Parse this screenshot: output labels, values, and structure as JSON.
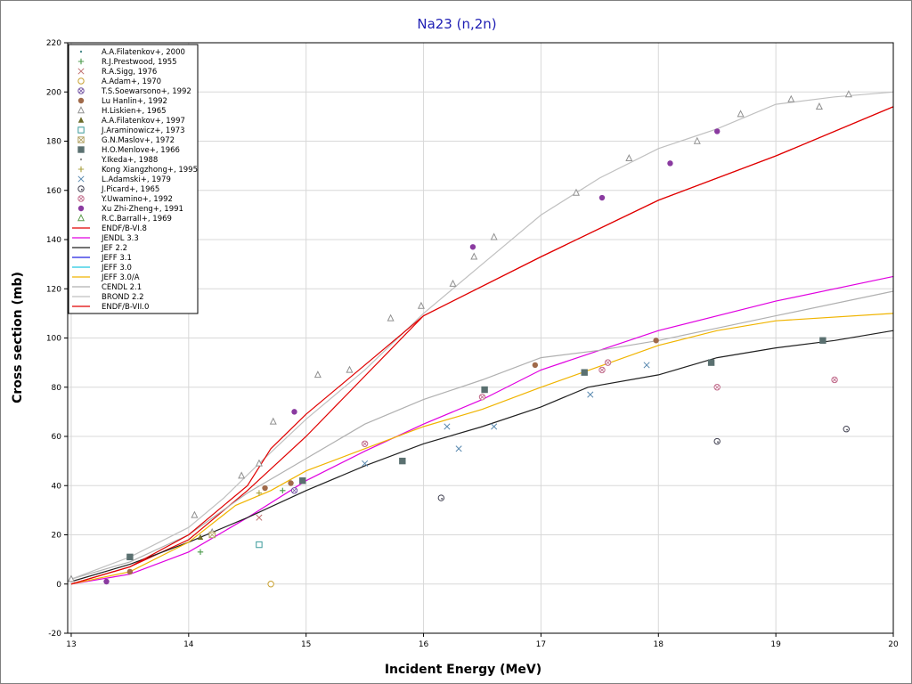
{
  "chart_data": {
    "type": "scatter",
    "title": "Na23 (n,2n)",
    "xlabel": "Incident Energy (MeV)",
    "ylabel": "Cross section (mb)",
    "xlim": [
      12.97,
      20
    ],
    "ylim": [
      -20,
      220
    ],
    "x_ticks": [
      13,
      14,
      15,
      16,
      17,
      18,
      19,
      20
    ],
    "y_ticks": [
      -20,
      0,
      20,
      40,
      60,
      80,
      100,
      120,
      140,
      160,
      180,
      200,
      220
    ],
    "grid": true,
    "legend_position": "top-left",
    "colors": {
      "title": "#1e1eb4",
      "grid": "#d8d8d8",
      "axis": "#000000"
    },
    "series": [
      {
        "name": "A.A.Filatenkov+, 2000",
        "kind": "points",
        "marker": "dot",
        "color": "#4a8a8a",
        "points": []
      },
      {
        "name": "R.J.Prestwood, 1955",
        "kind": "points",
        "marker": "plus",
        "color": "#4a9a4a",
        "points": [
          [
            14.1,
            13
          ],
          [
            14.8,
            38
          ]
        ]
      },
      {
        "name": "R.A.Sigg, 1976",
        "kind": "points",
        "marker": "x",
        "color": "#c07070",
        "points": [
          [
            14.6,
            27
          ]
        ]
      },
      {
        "name": "A.Adam+, 1970",
        "kind": "points",
        "marker": "circle",
        "color": "#c8a030",
        "points": [
          [
            14.7,
            0
          ]
        ]
      },
      {
        "name": "T.S.Soewarsono+, 1992",
        "kind": "points",
        "marker": "circlex",
        "color": "#7050a0",
        "points": [
          [
            14.9,
            38
          ]
        ]
      },
      {
        "name": "Lu Hanlin+, 1992",
        "kind": "points",
        "marker": "filledcircle",
        "color": "#a06a4a",
        "points": [
          [
            13.5,
            5
          ],
          [
            14.65,
            39
          ],
          [
            14.87,
            41
          ],
          [
            16.95,
            89
          ],
          [
            17.98,
            99
          ]
        ]
      },
      {
        "name": "H.Liskien+, 1965",
        "kind": "points",
        "marker": "triangle",
        "color": "#909090",
        "points": [
          [
            13.0,
            2
          ],
          [
            14.05,
            28
          ],
          [
            14.2,
            21
          ],
          [
            14.45,
            44
          ],
          [
            14.6,
            49
          ],
          [
            14.72,
            66
          ],
          [
            15.1,
            85
          ],
          [
            15.37,
            87
          ],
          [
            15.72,
            108
          ],
          [
            15.98,
            113
          ],
          [
            16.25,
            122
          ],
          [
            16.43,
            133
          ],
          [
            16.6,
            141
          ],
          [
            17.3,
            159
          ],
          [
            17.75,
            173
          ],
          [
            18.33,
            180
          ],
          [
            18.7,
            191
          ],
          [
            19.13,
            197
          ],
          [
            19.37,
            194
          ],
          [
            19.62,
            199
          ]
        ]
      },
      {
        "name": "A.A.Filatenkov+, 1997",
        "kind": "points",
        "marker": "filledtriangle",
        "color": "#6b6b2a",
        "points": [
          [
            14.1,
            19
          ]
        ]
      },
      {
        "name": "J.Araminowicz+, 1973",
        "kind": "points",
        "marker": "square",
        "color": "#3a9a9a",
        "points": [
          [
            14.6,
            16
          ]
        ]
      },
      {
        "name": "G.N.Maslov+, 1972",
        "kind": "points",
        "marker": "squarex",
        "color": "#b0a060",
        "points": [
          [
            14.2,
            20
          ]
        ]
      },
      {
        "name": "H.O.Menlove+, 1966",
        "kind": "points",
        "marker": "filledsquare",
        "color": "#5a7070",
        "points": [
          [
            13.5,
            11
          ],
          [
            14.97,
            42
          ],
          [
            15.82,
            50
          ],
          [
            16.52,
            79
          ],
          [
            17.37,
            86
          ],
          [
            18.45,
            90
          ],
          [
            19.4,
            99
          ]
        ]
      },
      {
        "name": "Y.Ikeda+, 1988",
        "kind": "points",
        "marker": "dot",
        "color": "#909090",
        "points": []
      },
      {
        "name": "Kong Xiangzhong+, 1995",
        "kind": "points",
        "marker": "plus",
        "color": "#a8a040",
        "points": [
          [
            14.6,
            37
          ]
        ]
      },
      {
        "name": "L.Adamski+, 1979",
        "kind": "points",
        "marker": "x",
        "color": "#5a8ab0",
        "points": [
          [
            15.5,
            49
          ],
          [
            16.2,
            64
          ],
          [
            16.3,
            55
          ],
          [
            16.6,
            64
          ],
          [
            17.42,
            77
          ],
          [
            17.9,
            89
          ]
        ]
      },
      {
        "name": "J.Picard+, 1965",
        "kind": "points",
        "marker": "circledot",
        "color": "#404050",
        "points": [
          [
            16.15,
            35
          ],
          [
            18.5,
            58
          ],
          [
            19.6,
            63
          ]
        ]
      },
      {
        "name": "Y.Uwamino+, 1992",
        "kind": "points",
        "marker": "circlex",
        "color": "#c06a8a",
        "points": [
          [
            15.5,
            57
          ],
          [
            16.5,
            76
          ],
          [
            17.52,
            87
          ],
          [
            17.57,
            90
          ],
          [
            18.5,
            80
          ],
          [
            19.5,
            83
          ]
        ]
      },
      {
        "name": "Xu Zhi-Zheng+, 1991",
        "kind": "points",
        "marker": "filledcircle",
        "color": "#8a3aa0",
        "points": [
          [
            13.3,
            1
          ],
          [
            14.9,
            70
          ],
          [
            16.42,
            137
          ],
          [
            17.52,
            157
          ],
          [
            18.1,
            171
          ],
          [
            18.5,
            184
          ]
        ]
      },
      {
        "name": "R.C.Barrall+, 1969",
        "kind": "points",
        "marker": "triangle",
        "color": "#5a9a4a",
        "points": []
      },
      {
        "name": "ENDF/B-VI.8",
        "kind": "line",
        "color": "#e00000",
        "points": [
          [
            13.0,
            0
          ],
          [
            13.5,
            7
          ],
          [
            14.0,
            18
          ],
          [
            14.5,
            38
          ],
          [
            15.0,
            60
          ],
          [
            16.0,
            109
          ],
          [
            17.0,
            133
          ],
          [
            18.0,
            156
          ],
          [
            19.0,
            174
          ],
          [
            20.0,
            194
          ]
        ]
      },
      {
        "name": "JENDL 3.3",
        "kind": "line",
        "color": "#e000e0",
        "points": [
          [
            13.0,
            0
          ],
          [
            13.5,
            4
          ],
          [
            14.0,
            13
          ],
          [
            14.5,
            27
          ],
          [
            15.0,
            42
          ],
          [
            15.5,
            54
          ],
          [
            16.0,
            65
          ],
          [
            16.5,
            75
          ],
          [
            17.0,
            87
          ],
          [
            18.0,
            103
          ],
          [
            19.0,
            115
          ],
          [
            20.0,
            125
          ]
        ]
      },
      {
        "name": "JEF 2.2",
        "kind": "line",
        "color": "#202020",
        "points": [
          [
            13.0,
            1
          ],
          [
            13.5,
            8
          ],
          [
            14.0,
            17
          ],
          [
            14.5,
            27
          ],
          [
            15.0,
            38
          ],
          [
            15.5,
            48
          ],
          [
            16.0,
            57
          ],
          [
            16.5,
            64
          ],
          [
            17.0,
            72
          ],
          [
            17.4,
            80
          ],
          [
            18.0,
            85
          ],
          [
            18.5,
            92
          ],
          [
            19.0,
            96
          ],
          [
            19.5,
            99
          ],
          [
            20.0,
            103
          ]
        ]
      },
      {
        "name": "JEFF 3.1",
        "kind": "line",
        "color": "#2020e0",
        "points": []
      },
      {
        "name": "JEFF 3.0",
        "kind": "line",
        "color": "#20c8e0",
        "points": []
      },
      {
        "name": "JEFF 3.0/A",
        "kind": "line",
        "color": "#f0b400",
        "points": [
          [
            13.0,
            0
          ],
          [
            13.5,
            5
          ],
          [
            14.0,
            17
          ],
          [
            14.4,
            32
          ],
          [
            14.7,
            38
          ],
          [
            15.0,
            46
          ],
          [
            15.5,
            55
          ],
          [
            16.0,
            64
          ],
          [
            16.5,
            71
          ],
          [
            17.0,
            80
          ],
          [
            18.0,
            97
          ],
          [
            18.5,
            103
          ],
          [
            19.0,
            107
          ],
          [
            20.0,
            110
          ]
        ]
      },
      {
        "name": "CENDL 2.1",
        "kind": "line",
        "color": "#b0b0b0",
        "points": [
          [
            13.0,
            2
          ],
          [
            13.5,
            9
          ],
          [
            14.0,
            20
          ],
          [
            14.5,
            37
          ],
          [
            15.0,
            51
          ],
          [
            15.5,
            65
          ],
          [
            16.0,
            75
          ],
          [
            16.5,
            83
          ],
          [
            17.0,
            92
          ],
          [
            17.5,
            95
          ],
          [
            18.0,
            99
          ],
          [
            18.5,
            104
          ],
          [
            19.0,
            109
          ],
          [
            20.0,
            119
          ]
        ]
      },
      {
        "name": "BROND 2.2",
        "kind": "line",
        "color": "#c0c0c0",
        "points": [
          [
            13.0,
            2
          ],
          [
            13.5,
            11
          ],
          [
            14.0,
            23
          ],
          [
            14.3,
            35
          ],
          [
            14.6,
            49
          ],
          [
            15.0,
            67
          ],
          [
            15.5,
            87
          ],
          [
            16.0,
            110
          ],
          [
            16.5,
            130
          ],
          [
            17.0,
            150
          ],
          [
            17.5,
            165
          ],
          [
            18.0,
            177
          ],
          [
            18.5,
            185
          ],
          [
            19.0,
            195
          ],
          [
            19.5,
            198
          ],
          [
            20.0,
            200
          ]
        ]
      },
      {
        "name": "ENDF/B-VII.0",
        "kind": "line",
        "color": "#e00000",
        "points": [
          [
            13.0,
            0
          ],
          [
            13.5,
            7
          ],
          [
            14.0,
            20
          ],
          [
            14.5,
            40
          ],
          [
            14.7,
            55
          ],
          [
            15.0,
            69
          ],
          [
            15.5,
            89
          ],
          [
            16.0,
            109
          ],
          [
            17.0,
            133
          ],
          [
            18.0,
            156
          ],
          [
            19.0,
            174
          ],
          [
            20.0,
            194
          ]
        ]
      }
    ]
  }
}
